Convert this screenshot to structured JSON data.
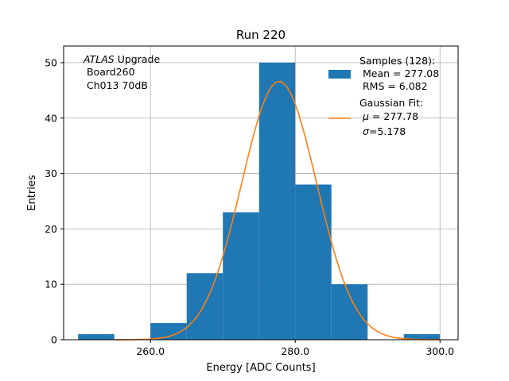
{
  "chart_data": {
    "type": "histogram",
    "title": "Run 220",
    "xlabel": "Energy [ADC Counts]",
    "ylabel": "Entries",
    "xlim": [
      248,
      302.5
    ],
    "ylim": [
      0,
      53
    ],
    "grid": true,
    "x_ticks": [
      260.0,
      280.0,
      300.0
    ],
    "x_tick_labels": [
      "260.0",
      "280.0",
      "300.0"
    ],
    "y_ticks": [
      0,
      10,
      20,
      30,
      40,
      50
    ],
    "y_tick_labels": [
      "0",
      "10",
      "20",
      "30",
      "40",
      "50"
    ],
    "bar_color": "#1f77b4",
    "fit_color": "#ff7f0e",
    "bins": [
      {
        "x0": 250,
        "x1": 255,
        "count": 1
      },
      {
        "x0": 255,
        "x1": 260,
        "count": 0
      },
      {
        "x0": 260,
        "x1": 265,
        "count": 3
      },
      {
        "x0": 265,
        "x1": 270,
        "count": 12
      },
      {
        "x0": 270,
        "x1": 275,
        "count": 23
      },
      {
        "x0": 275,
        "x1": 280,
        "count": 50
      },
      {
        "x0": 280,
        "x1": 285,
        "count": 28
      },
      {
        "x0": 285,
        "x1": 290,
        "count": 10
      },
      {
        "x0": 290,
        "x1": 295,
        "count": 0
      },
      {
        "x0": 295,
        "x1": 300,
        "count": 1
      }
    ],
    "gaussian_fit": {
      "amplitude": 46.6,
      "mu": 277.78,
      "sigma": 5.178,
      "x_range": [
        255,
        300
      ]
    },
    "annotation": {
      "line1_italic": "ATLAS",
      "line1_rest": " Upgrade",
      "line2": " Board260",
      "line3": " Ch013 70dB"
    },
    "legend": {
      "placement": "upper right",
      "samples_title": "Samples (128):",
      "samples_mean": " Mean = 277.08",
      "samples_rms": " RMS = 6.082",
      "fit_title": "Gaussian Fit:",
      "fit_mu_symbol": "μ",
      "fit_mu_value": " = 277.78",
      "fit_sigma_symbol": "σ",
      "fit_sigma_value": "=5.178"
    }
  }
}
